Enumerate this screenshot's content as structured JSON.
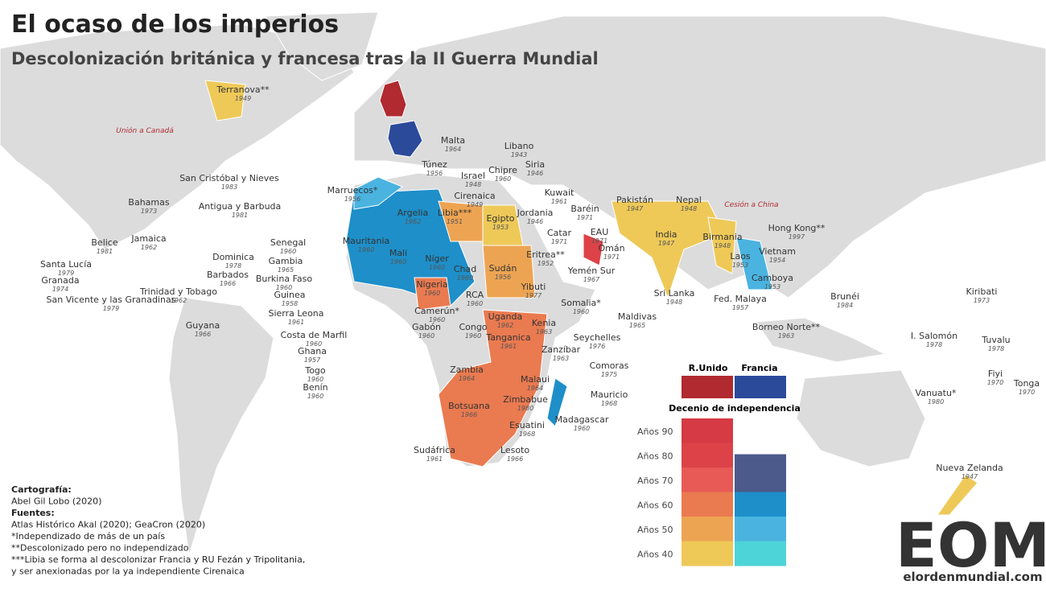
{
  "title": "El ocaso de los imperios",
  "subtitle": "Descolonización británica y francesa tras la II Guerra Mundial",
  "annotations": [
    "Unión a Canadá",
    "Cesión a China"
  ],
  "labels": [
    {
      "name": "Terranova**",
      "year": 1949
    },
    {
      "name": "Malta",
      "year": 1964
    },
    {
      "name": "Túnez",
      "year": 1956
    },
    {
      "name": "Libano",
      "year": 1943
    },
    {
      "name": "Siria",
      "year": 1946
    },
    {
      "name": "Israel",
      "year": 1948
    },
    {
      "name": "Chipre",
      "year": 1960
    },
    {
      "name": "San Cristóbal y Nieves",
      "year": 1983
    },
    {
      "name": "Marruecos*",
      "year": 1956
    },
    {
      "name": "Cirenaica",
      "year": 1949
    },
    {
      "name": "Kuwait",
      "year": 1961
    },
    {
      "name": "Bahamas",
      "year": 1973
    },
    {
      "name": "Antigua y Barbuda",
      "year": 1981
    },
    {
      "name": "Argelia",
      "year": 1962
    },
    {
      "name": "Libia***",
      "year": 1951
    },
    {
      "name": "Egipto",
      "year": 1953
    },
    {
      "name": "Jordania",
      "year": 1946
    },
    {
      "name": "Baréin",
      "year": 1971
    },
    {
      "name": "Pakistán",
      "year": 1947
    },
    {
      "name": "Nepal",
      "year": 1948
    },
    {
      "name": "Catar",
      "year": 1971
    },
    {
      "name": "EAU",
      "year": 1971
    },
    {
      "name": "Hong Kong**",
      "year": 1997
    },
    {
      "name": "Jamaica",
      "year": 1962
    },
    {
      "name": "Belice",
      "year": 1981
    },
    {
      "name": "India",
      "year": 1947
    },
    {
      "name": "Birmania",
      "year": 1948
    },
    {
      "name": "Mauritania",
      "year": 1960
    },
    {
      "name": "Omán",
      "year": 1971
    },
    {
      "name": "Senegal",
      "year": 1960
    },
    {
      "name": "Dominica",
      "year": 1978
    },
    {
      "name": "Santa Lucía",
      "year": 1979
    },
    {
      "name": "Mali",
      "year": 1960
    },
    {
      "name": "Vietnam",
      "year": 1954
    },
    {
      "name": "Gambia",
      "year": 1965
    },
    {
      "name": "Níger",
      "year": 1960
    },
    {
      "name": "Laos",
      "year": 1953
    },
    {
      "name": "Eritrea**",
      "year": 1952
    },
    {
      "name": "Granada",
      "year": 1974
    },
    {
      "name": "Barbados",
      "year": 1966
    },
    {
      "name": "Burkina Faso",
      "year": 1960
    },
    {
      "name": "Chad",
      "year": 1960
    },
    {
      "name": "Sudán",
      "year": 1956
    },
    {
      "name": "Yemén Sur",
      "year": 1967
    },
    {
      "name": "Camboya",
      "year": 1953
    },
    {
      "name": "Nigeria",
      "year": 1960
    },
    {
      "name": "Trinidad y Tobago",
      "year": 1962
    },
    {
      "name": "San Vicente y las Granadinas",
      "year": 1979
    },
    {
      "name": "Guinea",
      "year": 1958
    },
    {
      "name": "Yibuti",
      "year": 1977
    },
    {
      "name": "Sri Lanka",
      "year": 1948
    },
    {
      "name": "Fed. Malaya",
      "year": 1957
    },
    {
      "name": "Brunéi",
      "year": 1984
    },
    {
      "name": "Kiribati",
      "year": 1973
    },
    {
      "name": "RCA",
      "year": 1960
    },
    {
      "name": "Sierra Leona",
      "year": 1961
    },
    {
      "name": "Camerún*",
      "year": 1960
    },
    {
      "name": "Somalia*",
      "year": 1960
    },
    {
      "name": "Maldivas",
      "year": 1965
    },
    {
      "name": "Guyana",
      "year": 1966
    },
    {
      "name": "Uganda",
      "year": 1962
    },
    {
      "name": "Gabón",
      "year": 1960
    },
    {
      "name": "Congo",
      "year": 1960
    },
    {
      "name": "Kenia",
      "year": 1963
    },
    {
      "name": "Borneo Norte**",
      "year": 1963
    },
    {
      "name": "Costa de Marfil",
      "year": 1960
    },
    {
      "name": "Seychelles",
      "year": 1976
    },
    {
      "name": "Tanganica",
      "year": 1961
    },
    {
      "name": "I. Salomón",
      "year": 1978
    },
    {
      "name": "Tuvalu",
      "year": 1978
    },
    {
      "name": "Ghana",
      "year": 1957
    },
    {
      "name": "Zanzíbar",
      "year": 1963
    },
    {
      "name": "Togo",
      "year": 1960
    },
    {
      "name": "Comoras",
      "year": 1975
    },
    {
      "name": "Fiyi",
      "year": 1970
    },
    {
      "name": "Zambia",
      "year": 1964
    },
    {
      "name": "Malaui",
      "year": 1964
    },
    {
      "name": "Tonga",
      "year": 1970
    },
    {
      "name": "Benín",
      "year": 1960
    },
    {
      "name": "Vanuatu*",
      "year": 1980
    },
    {
      "name": "Mauricio",
      "year": 1968
    },
    {
      "name": "Zimbabue",
      "year": 1980
    },
    {
      "name": "Botsuana",
      "year": 1966
    },
    {
      "name": "Madagascar",
      "year": 1960
    },
    {
      "name": "Esuatini",
      "year": 1968
    },
    {
      "name": "Sudáfrica",
      "year": 1961
    },
    {
      "name": "Lesoto",
      "year": 1966
    },
    {
      "name": "Nueva Zelanda",
      "year": 1947
    }
  ],
  "legend": {
    "uk": "R.Unido",
    "fr": "Francia",
    "title": "Decenio de independencia",
    "decades": [
      "Años 90",
      "Años 80",
      "Años 70",
      "Años 60",
      "Años 50",
      "Años 40"
    ]
  },
  "footer": [
    "Cartografía:",
    "Abel Gil Lobo (2020)",
    "Fuentes:",
    "Atlas Histórico Akal (2020); GeaCron (2020)",
    "*Independizado de más de un país",
    "**Descolonizado pero no independizado",
    "***Libia se forma al descolonizar Francia y RU Fezán y Tripolitania,",
    "y ser anexionadas por la ya independiente Cirenaica"
  ],
  "logo": {
    "mark": "EOM",
    "site": "elordenmundial.com"
  }
}
